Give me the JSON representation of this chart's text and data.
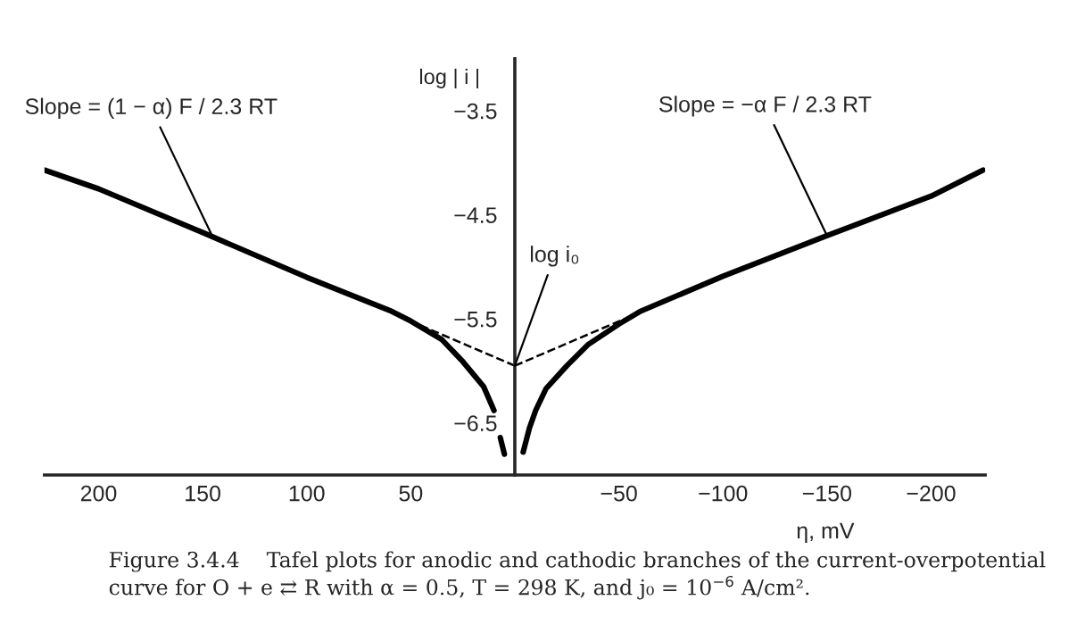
{
  "chart_data": {
    "type": "line",
    "xlabel": "η, mV",
    "ylabel": "log | i |",
    "xlim": [
      226,
      -226
    ],
    "ylim": [
      -7.0,
      -3.0
    ],
    "xticks": [
      200,
      150,
      100,
      50,
      {
        "value": -50,
        "label": "−50"
      },
      {
        "value": -100,
        "label": "−100"
      },
      {
        "value": -150,
        "label": "−150"
      },
      {
        "value": -200,
        "label": "−200"
      }
    ],
    "yticks": [
      {
        "value": -3.5,
        "label": "−3.5"
      },
      {
        "value": -4.5,
        "label": "−4.5"
      },
      {
        "value": -5.5,
        "label": "−5.5"
      },
      {
        "value": -6.5,
        "label": "−6.5"
      }
    ],
    "grid": false,
    "marker": "none",
    "series": [
      {
        "color": "#000000",
        "line_style": "solid",
        "x": [
          226,
          200,
          150,
          100,
          60,
          50,
          35,
          25,
          15,
          10,
          8,
          7,
          5
        ],
        "values": [
          -4.07,
          -4.25,
          -4.67,
          -5.1,
          -5.42,
          -5.52,
          -5.7,
          -5.91,
          -6.15,
          -6.38,
          null,
          -6.64,
          -6.8
        ]
      },
      {
        "color": "#000000",
        "line_style": "solid",
        "x": [
          -4,
          -7,
          -10,
          -15,
          -25,
          -35,
          -50,
          -60,
          -100,
          -150,
          -200,
          -225
        ],
        "values": [
          -6.78,
          -6.55,
          -6.38,
          -6.17,
          -5.95,
          -5.75,
          -5.55,
          -5.43,
          -5.09,
          -4.7,
          -4.32,
          -4.07
        ]
      },
      {
        "color": "#000000",
        "line_style": "dashed",
        "x": [
          0,
          55
        ],
        "values": [
          -5.95,
          -5.48
        ]
      },
      {
        "color": "#000000",
        "line_style": "dashed",
        "x": [
          0,
          -55
        ],
        "values": [
          -5.95,
          -5.48
        ]
      }
    ],
    "annotations": [
      {
        "text": "Slope = (1 − α) F / 2.3 RT",
        "x": 145,
        "y": -4.72
      },
      {
        "text": "Slope = −α F / 2.3 RT",
        "x": -150,
        "y": -4.7
      },
      {
        "text": "log i₀",
        "x": 0,
        "y": -5.95
      },
      "Figure 3.4.4    Tafel plots for anodic and cathodic branches of the current-overpotential curve for O + e ⇄ R with α = 0.5, T = 298 K, and j₀ = 10$^{−6}$ A/cm²."
    ]
  }
}
